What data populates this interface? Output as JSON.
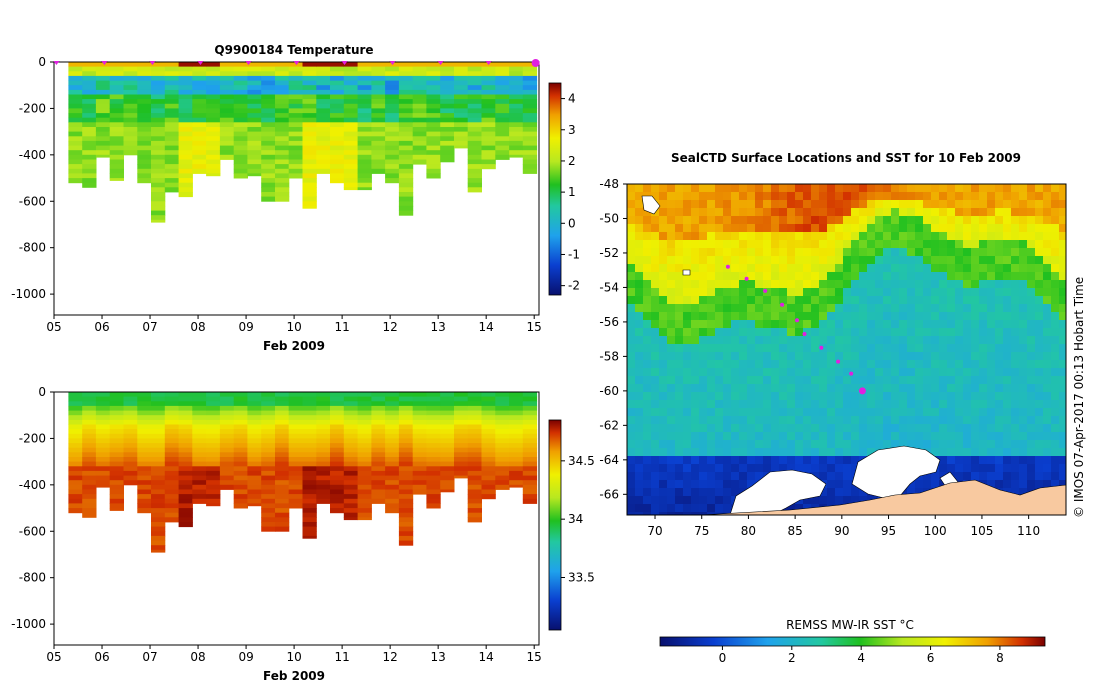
{
  "chart_data": [
    {
      "type": "heatmap",
      "title": "Q9900184  Temperature",
      "xlabel": "Feb 2009",
      "ylabel": "",
      "x_ticks": [
        "05",
        "06",
        "07",
        "08",
        "09",
        "10",
        "11",
        "12",
        "13",
        "14",
        "15"
      ],
      "y_ticks": [
        0,
        -200,
        -400,
        -600,
        -800,
        -1000
      ],
      "xlim": [
        5.0,
        15.1
      ],
      "ylim": [
        -1090,
        0
      ],
      "colorbar": {
        "ticks": [
          4,
          3,
          2,
          1,
          0,
          -1,
          -2
        ],
        "range": [
          -2.3,
          4.5
        ]
      },
      "profile_depths": [
        520,
        540,
        410,
        510,
        400,
        520,
        690,
        560,
        580,
        480,
        490,
        420,
        500,
        490,
        600,
        600,
        500,
        630,
        480,
        520,
        550,
        550,
        480,
        520,
        660,
        440,
        500,
        430,
        370,
        560,
        460,
        420,
        410,
        480
      ]
    },
    {
      "type": "heatmap",
      "title": "",
      "xlabel": "Feb 2009",
      "ylabel": "",
      "x_ticks": [
        "05",
        "06",
        "07",
        "08",
        "09",
        "10",
        "11",
        "12",
        "13",
        "14",
        "15"
      ],
      "y_ticks": [
        0,
        -200,
        -400,
        -600,
        -800,
        -1000
      ],
      "xlim": [
        5.0,
        15.1
      ],
      "ylim": [
        -1090,
        0
      ],
      "colorbar": {
        "ticks": [
          34.5,
          34,
          33.5
        ],
        "range": [
          33.05,
          34.85
        ]
      },
      "profile_depths": [
        520,
        540,
        410,
        510,
        400,
        520,
        690,
        560,
        580,
        480,
        490,
        420,
        500,
        490,
        600,
        600,
        500,
        630,
        480,
        520,
        550,
        550,
        480,
        520,
        660,
        440,
        500,
        430,
        370,
        560,
        460,
        420,
        410,
        480
      ]
    },
    {
      "type": "heatmap",
      "title": "SealCTD Surface Locations and SST for 10 Feb 2009",
      "xlabel": "",
      "ylabel": "",
      "x_ticks": [
        70,
        75,
        80,
        85,
        90,
        95,
        100,
        105,
        110
      ],
      "y_ticks": [
        -48,
        -50,
        -52,
        -54,
        -56,
        -58,
        -60,
        -62,
        -64,
        -66
      ],
      "xlim": [
        67,
        114
      ],
      "ylim": [
        -67.2,
        -48
      ],
      "colorbar": {
        "label": "REMSS MW-IR SST °C",
        "ticks": [
          0,
          2,
          4,
          6,
          8
        ],
        "range": [
          -1.8,
          9.3
        ]
      },
      "track": [
        [
          77.8,
          -52.8
        ],
        [
          79.8,
          -53.5
        ],
        [
          81.8,
          -54.2
        ],
        [
          83.6,
          -55.0
        ],
        [
          85.2,
          -55.9
        ],
        [
          86.0,
          -56.7
        ],
        [
          87.8,
          -57.5
        ],
        [
          89.6,
          -58.3
        ],
        [
          91.0,
          -59.0
        ],
        [
          92.2,
          -60.0
        ]
      ],
      "credit": "© IMOS 07-Apr-2017 00:13 Hobart Time"
    }
  ]
}
